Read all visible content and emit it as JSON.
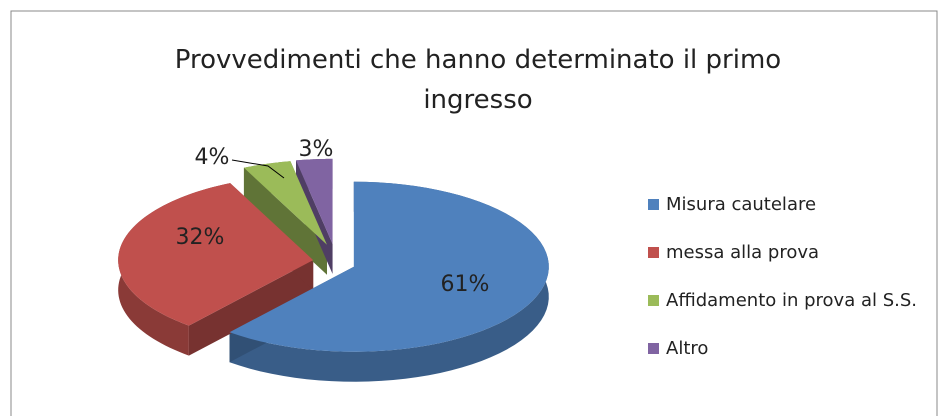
{
  "chart_data": {
    "type": "pie",
    "title": "Provvedimenti che hanno determinato il primo ingresso",
    "categories": [
      "Misura cautelare",
      "messa alla prova",
      "Affidamento in prova al S.S.",
      "Altro"
    ],
    "values": [
      61,
      32,
      4,
      3
    ],
    "value_labels": [
      "61%",
      "32%",
      "4%",
      "3%"
    ],
    "colors": [
      "#4f81bd",
      "#c0504d",
      "#9bbb59",
      "#8064a2"
    ],
    "legend": "right"
  }
}
